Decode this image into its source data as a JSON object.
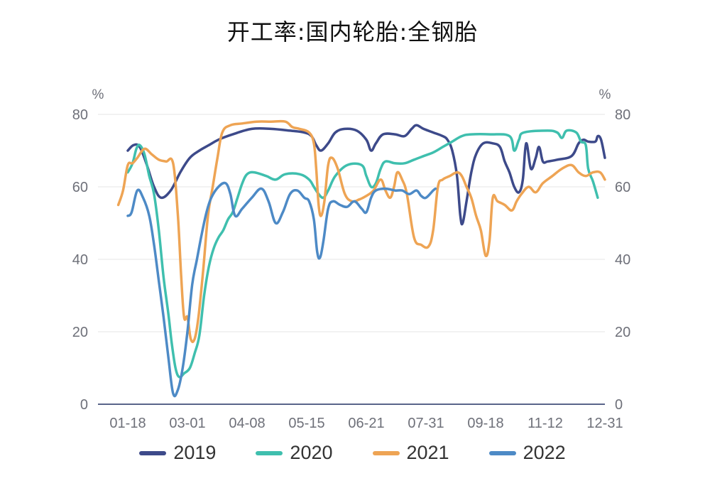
{
  "chart_data": {
    "type": "line",
    "title": "开工率:国内轮胎:全钢胎",
    "ylabel_left": "%",
    "ylabel_right": "%",
    "ylim": [
      0,
      80
    ],
    "yticks": [
      "0",
      "20",
      "40",
      "60",
      "80"
    ],
    "x_ticks": [
      "01-18",
      "03-01",
      "04-08",
      "05-15",
      "06-21",
      "07-31",
      "09-18",
      "11-12",
      "12-31"
    ],
    "grid": true,
    "legend_position": "bottom",
    "series": [
      {
        "name": "2019",
        "color": "#3d4a8a",
        "values": [
          [
            0.0,
            70.0
          ],
          [
            0.012,
            71.5
          ],
          [
            0.025,
            71.0
          ],
          [
            0.04,
            66.0
          ],
          [
            0.055,
            60.0
          ],
          [
            0.07,
            57.0
          ],
          [
            0.09,
            59.0
          ],
          [
            0.11,
            64.0
          ],
          [
            0.13,
            68.0
          ],
          [
            0.15,
            70.0
          ],
          [
            0.17,
            71.5
          ],
          [
            0.19,
            73.0
          ],
          [
            0.22,
            74.5
          ],
          [
            0.26,
            76.0
          ],
          [
            0.3,
            76.0
          ],
          [
            0.34,
            75.5
          ],
          [
            0.37,
            75.0
          ],
          [
            0.385,
            74.0
          ],
          [
            0.395,
            71.5
          ],
          [
            0.405,
            70.0
          ],
          [
            0.42,
            72.0
          ],
          [
            0.435,
            75.0
          ],
          [
            0.455,
            76.0
          ],
          [
            0.48,
            75.5
          ],
          [
            0.5,
            73.0
          ],
          [
            0.51,
            70.0
          ],
          [
            0.52,
            72.0
          ],
          [
            0.535,
            74.5
          ],
          [
            0.56,
            74.5
          ],
          [
            0.58,
            74.0
          ],
          [
            0.595,
            76.0
          ],
          [
            0.605,
            77.0
          ],
          [
            0.62,
            76.0
          ],
          [
            0.64,
            75.0
          ],
          [
            0.66,
            74.0
          ],
          [
            0.67,
            73.0
          ],
          [
            0.68,
            70.0
          ],
          [
            0.69,
            63.0
          ],
          [
            0.697,
            52.0
          ],
          [
            0.702,
            50.0
          ],
          [
            0.71,
            56.0
          ],
          [
            0.72,
            64.0
          ],
          [
            0.73,
            69.0
          ],
          [
            0.745,
            72.0
          ],
          [
            0.765,
            72.0
          ],
          [
            0.78,
            71.0
          ],
          [
            0.79,
            67.0
          ],
          [
            0.8,
            64.0
          ],
          [
            0.81,
            60.0
          ],
          [
            0.82,
            58.5
          ],
          [
            0.828,
            62.0
          ],
          [
            0.835,
            72.0
          ],
          [
            0.845,
            65.0
          ],
          [
            0.855,
            68.0
          ],
          [
            0.862,
            71.0
          ],
          [
            0.87,
            67.0
          ],
          [
            0.88,
            67.0
          ],
          [
            0.9,
            67.5
          ],
          [
            0.93,
            68.5
          ],
          [
            0.945,
            72.0
          ],
          [
            0.955,
            73.0
          ],
          [
            0.965,
            72.5
          ],
          [
            0.98,
            72.5
          ],
          [
            0.985,
            74.0
          ],
          [
            0.992,
            73.0
          ],
          [
            1.0,
            68.0
          ]
        ]
      },
      {
        "name": "2020",
        "color": "#3fbfae",
        "values": [
          [
            0.0,
            64.0
          ],
          [
            0.01,
            66.5
          ],
          [
            0.018,
            70.5
          ],
          [
            0.025,
            71.5
          ],
          [
            0.035,
            69.0
          ],
          [
            0.045,
            63.0
          ],
          [
            0.055,
            58.0
          ],
          [
            0.065,
            48.0
          ],
          [
            0.075,
            35.0
          ],
          [
            0.085,
            25.0
          ],
          [
            0.092,
            17.0
          ],
          [
            0.1,
            10.0
          ],
          [
            0.108,
            7.5
          ],
          [
            0.118,
            8.5
          ],
          [
            0.13,
            10.0
          ],
          [
            0.14,
            14.0
          ],
          [
            0.15,
            19.0
          ],
          [
            0.16,
            30.0
          ],
          [
            0.17,
            38.0
          ],
          [
            0.18,
            43.0
          ],
          [
            0.19,
            46.0
          ],
          [
            0.2,
            48.0
          ],
          [
            0.21,
            51.0
          ],
          [
            0.22,
            53.0
          ],
          [
            0.23,
            57.0
          ],
          [
            0.24,
            61.0
          ],
          [
            0.25,
            63.5
          ],
          [
            0.265,
            64.0
          ],
          [
            0.29,
            63.0
          ],
          [
            0.31,
            62.0
          ],
          [
            0.33,
            63.5
          ],
          [
            0.36,
            63.5
          ],
          [
            0.38,
            62.0
          ],
          [
            0.39,
            60.0
          ],
          [
            0.4,
            58.0
          ],
          [
            0.41,
            57.0
          ],
          [
            0.42,
            59.0
          ],
          [
            0.435,
            63.0
          ],
          [
            0.46,
            66.0
          ],
          [
            0.49,
            66.0
          ],
          [
            0.5,
            63.0
          ],
          [
            0.51,
            60.0
          ],
          [
            0.52,
            61.0
          ],
          [
            0.53,
            65.0
          ],
          [
            0.54,
            67.0
          ],
          [
            0.56,
            66.5
          ],
          [
            0.58,
            66.5
          ],
          [
            0.6,
            67.5
          ],
          [
            0.62,
            68.5
          ],
          [
            0.64,
            69.5
          ],
          [
            0.66,
            71.0
          ],
          [
            0.68,
            72.5
          ],
          [
            0.7,
            74.0
          ],
          [
            0.72,
            74.5
          ],
          [
            0.76,
            74.5
          ],
          [
            0.8,
            74.0
          ],
          [
            0.81,
            70.0
          ],
          [
            0.82,
            73.0
          ],
          [
            0.83,
            75.0
          ],
          [
            0.88,
            75.5
          ],
          [
            0.9,
            75.0
          ],
          [
            0.91,
            73.5
          ],
          [
            0.92,
            75.5
          ],
          [
            0.94,
            75.0
          ],
          [
            0.95,
            72.5
          ],
          [
            0.96,
            71.5
          ],
          [
            0.965,
            65.0
          ],
          [
            0.975,
            61.5
          ],
          [
            0.985,
            57.0
          ]
        ]
      },
      {
        "name": "2021",
        "color": "#eea454",
        "values": [
          [
            -0.02,
            55.0
          ],
          [
            -0.01,
            59.0
          ],
          [
            0.0,
            66.0
          ],
          [
            0.01,
            66.5
          ],
          [
            0.02,
            68.0
          ],
          [
            0.035,
            70.5
          ],
          [
            0.05,
            69.0
          ],
          [
            0.065,
            67.5
          ],
          [
            0.08,
            67.0
          ],
          [
            0.095,
            66.5
          ],
          [
            0.105,
            52.0
          ],
          [
            0.112,
            35.0
          ],
          [
            0.118,
            24.0
          ],
          [
            0.125,
            24.0
          ],
          [
            0.132,
            18.0
          ],
          [
            0.14,
            18.0
          ],
          [
            0.148,
            24.0
          ],
          [
            0.158,
            37.0
          ],
          [
            0.168,
            52.0
          ],
          [
            0.178,
            60.0
          ],
          [
            0.188,
            68.0
          ],
          [
            0.198,
            75.0
          ],
          [
            0.215,
            77.0
          ],
          [
            0.24,
            77.5
          ],
          [
            0.27,
            78.0
          ],
          [
            0.3,
            78.0
          ],
          [
            0.33,
            78.0
          ],
          [
            0.345,
            76.5
          ],
          [
            0.36,
            76.0
          ],
          [
            0.38,
            75.0
          ],
          [
            0.39,
            72.0
          ],
          [
            0.395,
            65.0
          ],
          [
            0.4,
            55.0
          ],
          [
            0.405,
            52.0
          ],
          [
            0.412,
            56.0
          ],
          [
            0.42,
            66.0
          ],
          [
            0.428,
            68.0
          ],
          [
            0.44,
            65.0
          ],
          [
            0.455,
            58.0
          ],
          [
            0.47,
            56.0
          ],
          [
            0.485,
            56.5
          ],
          [
            0.5,
            57.5
          ],
          [
            0.515,
            59.0
          ],
          [
            0.53,
            62.0
          ],
          [
            0.54,
            59.0
          ],
          [
            0.55,
            57.0
          ],
          [
            0.558,
            60.0
          ],
          [
            0.565,
            64.0
          ],
          [
            0.575,
            62.0
          ],
          [
            0.585,
            58.0
          ],
          [
            0.6,
            46.0
          ],
          [
            0.615,
            44.0
          ],
          [
            0.63,
            43.5
          ],
          [
            0.64,
            48.0
          ],
          [
            0.65,
            60.0
          ],
          [
            0.66,
            62.0
          ],
          [
            0.675,
            63.0
          ],
          [
            0.69,
            64.0
          ],
          [
            0.7,
            63.0
          ],
          [
            0.71,
            60.0
          ],
          [
            0.72,
            57.0
          ],
          [
            0.73,
            52.0
          ],
          [
            0.74,
            48.0
          ],
          [
            0.75,
            41.0
          ],
          [
            0.758,
            45.0
          ],
          [
            0.765,
            57.0
          ],
          [
            0.775,
            56.0
          ],
          [
            0.79,
            55.0
          ],
          [
            0.805,
            53.5
          ],
          [
            0.815,
            56.0
          ],
          [
            0.825,
            58.0
          ],
          [
            0.84,
            60.0
          ],
          [
            0.855,
            58.5
          ],
          [
            0.87,
            61.0
          ],
          [
            0.89,
            63.0
          ],
          [
            0.91,
            65.0
          ],
          [
            0.93,
            66.0
          ],
          [
            0.945,
            64.0
          ],
          [
            0.96,
            63.0
          ],
          [
            0.975,
            64.0
          ],
          [
            0.99,
            64.0
          ],
          [
            1.0,
            62.0
          ]
        ]
      },
      {
        "name": "2022",
        "color": "#4d8ac6",
        "values": [
          [
            0.0,
            52.0
          ],
          [
            0.008,
            53.0
          ],
          [
            0.02,
            59.0
          ],
          [
            0.032,
            57.0
          ],
          [
            0.045,
            52.0
          ],
          [
            0.055,
            44.0
          ],
          [
            0.065,
            34.0
          ],
          [
            0.075,
            24.0
          ],
          [
            0.085,
            13.0
          ],
          [
            0.095,
            3.0
          ],
          [
            0.105,
            4.0
          ],
          [
            0.115,
            10.0
          ],
          [
            0.125,
            20.0
          ],
          [
            0.135,
            33.0
          ],
          [
            0.145,
            40.0
          ],
          [
            0.155,
            47.0
          ],
          [
            0.165,
            53.0
          ],
          [
            0.175,
            57.0
          ],
          [
            0.19,
            60.0
          ],
          [
            0.205,
            61.0
          ],
          [
            0.215,
            58.0
          ],
          [
            0.225,
            52.0
          ],
          [
            0.24,
            54.0
          ],
          [
            0.26,
            57.0
          ],
          [
            0.28,
            59.5
          ],
          [
            0.295,
            56.0
          ],
          [
            0.31,
            50.0
          ],
          [
            0.325,
            53.0
          ],
          [
            0.34,
            58.0
          ],
          [
            0.355,
            59.0
          ],
          [
            0.37,
            57.0
          ],
          [
            0.38,
            56.0
          ],
          [
            0.39,
            51.0
          ],
          [
            0.397,
            42.0
          ],
          [
            0.403,
            40.5
          ],
          [
            0.41,
            45.0
          ],
          [
            0.42,
            54.0
          ],
          [
            0.43,
            56.0
          ],
          [
            0.445,
            55.0
          ],
          [
            0.46,
            54.5
          ],
          [
            0.475,
            56.0
          ],
          [
            0.49,
            54.0
          ],
          [
            0.5,
            53.0
          ],
          [
            0.51,
            57.0
          ],
          [
            0.52,
            59.0
          ],
          [
            0.54,
            59.5
          ],
          [
            0.56,
            59.0
          ],
          [
            0.575,
            59.0
          ],
          [
            0.59,
            58.0
          ],
          [
            0.605,
            59.0
          ],
          [
            0.615,
            57.5
          ],
          [
            0.625,
            57.0
          ],
          [
            0.64,
            59.0
          ],
          [
            0.645,
            59.5
          ]
        ]
      }
    ]
  }
}
